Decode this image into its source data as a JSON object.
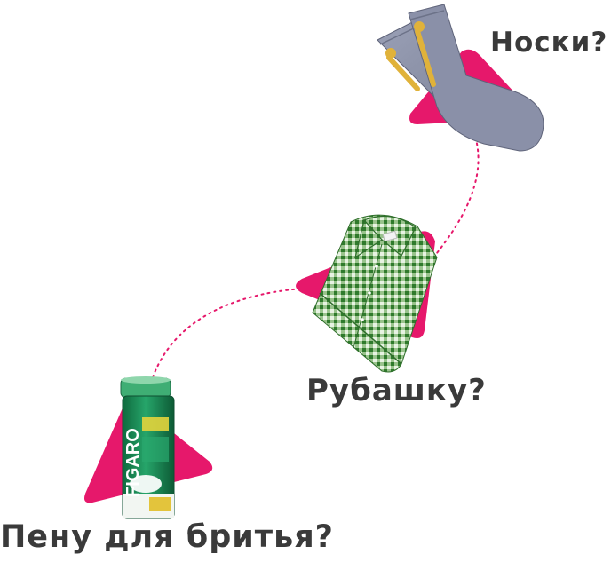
{
  "labels": {
    "socks": "Носки?",
    "shirt": "Рубашку?",
    "foam": "Пену для бритья?"
  },
  "product_text": {
    "can_brand": "FIGARO"
  },
  "colors": {
    "accent_pink": "#E6186B",
    "text_dark": "#3A3A3A",
    "sock_gray": "#8A90A8",
    "sock_logo": "#E0B23A",
    "shirt_green": "#3E8B3A",
    "can_green": "#1E8A55"
  },
  "icons": [
    "socks-icon",
    "shirt-icon",
    "shaving-foam-can-icon"
  ]
}
